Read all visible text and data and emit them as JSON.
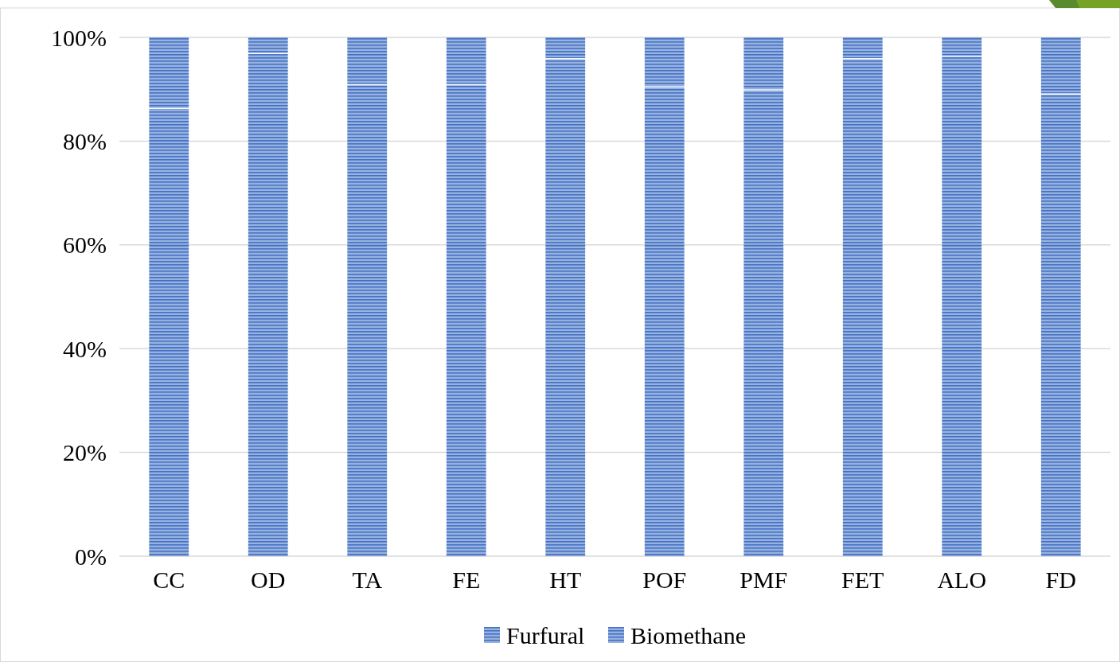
{
  "chart_data": {
    "type": "bar",
    "stacked": true,
    "categories": [
      "CC",
      "OD",
      "TA",
      "FE",
      "HT",
      "POF",
      "PMF",
      "FET",
      "ALO",
      "FD"
    ],
    "series": [
      {
        "name": "Furfural",
        "color": "#4472c4",
        "values": [
          86.4,
          97,
          91,
          91,
          96,
          90.6,
          90,
          96,
          96.5,
          89.2
        ]
      },
      {
        "name": "Biomethane",
        "color": "#4472c4",
        "values": [
          13.6,
          3,
          9,
          9,
          4,
          9.4,
          10,
          4,
          3.5,
          10.8
        ]
      }
    ],
    "ylim": [
      0,
      100
    ],
    "yticks": [
      {
        "value": 0,
        "label": "0%"
      },
      {
        "value": 20,
        "label": "20%"
      },
      {
        "value": 40,
        "label": "40%"
      },
      {
        "value": 60,
        "label": "60%"
      },
      {
        "value": 80,
        "label": "80%"
      },
      {
        "value": 100,
        "label": "100%"
      }
    ],
    "grid": "y",
    "legend": "bottom"
  }
}
